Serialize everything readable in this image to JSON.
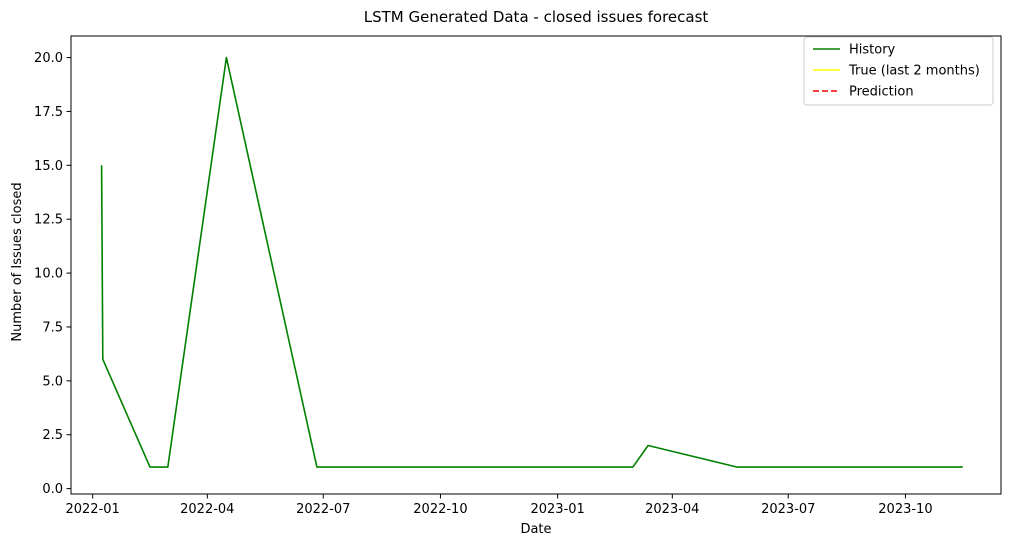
{
  "chart_data": {
    "type": "line",
    "title": "LSTM Generated Data - closed issues forecast",
    "xlabel": "Date",
    "ylabel": "Number of Issues closed",
    "x_ticks": [
      "2022-01",
      "2022-04",
      "2022-07",
      "2022-10",
      "2023-01",
      "2023-04",
      "2023-07",
      "2023-10"
    ],
    "y_ticks": [
      "0.0",
      "2.5",
      "5.0",
      "7.5",
      "10.0",
      "12.5",
      "15.0",
      "17.5",
      "20.0"
    ],
    "xlim": [
      "2021-12-15",
      "2023-12-15"
    ],
    "ylim": [
      -0.25,
      21
    ],
    "grid": false,
    "legend_position": "top-right",
    "series": [
      {
        "name": "History",
        "color": "#008000",
        "style": "solid",
        "points": [
          {
            "x": "2022-01-08",
            "y": 15
          },
          {
            "x": "2022-01-09",
            "y": 6
          },
          {
            "x": "2022-02-15",
            "y": 1
          },
          {
            "x": "2022-03-01",
            "y": 1
          },
          {
            "x": "2022-04-16",
            "y": 20
          },
          {
            "x": "2022-06-26",
            "y": 1
          },
          {
            "x": "2023-03-01",
            "y": 1
          },
          {
            "x": "2023-03-13",
            "y": 2
          },
          {
            "x": "2023-05-22",
            "y": 1
          },
          {
            "x": "2023-11-15",
            "y": 1
          }
        ]
      },
      {
        "name": "True (last 2 months)",
        "color": "#ffff00",
        "style": "solid",
        "points": []
      },
      {
        "name": "Prediction",
        "color": "#ff0000",
        "style": "dashed",
        "points": []
      }
    ]
  }
}
